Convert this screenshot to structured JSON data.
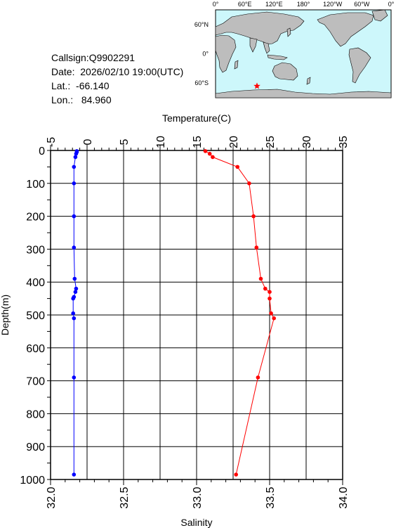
{
  "station": {
    "callsign_label": "Callsign:",
    "callsign": "Q9902291",
    "date_label": "Date:",
    "date": "2026/02/10 19:00(UTC)",
    "lat_label": "Lat.:",
    "lat": "-66.140",
    "lon_label": "Lon.:",
    "lon": "84.960"
  },
  "map": {
    "top_labels": [
      "0°",
      "60°E",
      "120°E",
      "180°",
      "120°W",
      "60°W",
      "0°"
    ],
    "lat_labels": [
      "60°N",
      "0°",
      "60°S"
    ],
    "colors": {
      "ocean": "#cdf7fb",
      "land": "#bdbdbd",
      "marker": "#ff0000"
    },
    "marker_icon": "star-icon"
  },
  "chart_data": {
    "type": "line",
    "top_axis": {
      "label": "Temperature(C)",
      "range": [
        -5,
        35
      ],
      "ticks": [
        -5,
        0,
        5,
        10,
        15,
        20,
        25,
        30,
        35
      ]
    },
    "bottom_axis": {
      "label": "Salinity",
      "range": [
        32.0,
        34.0
      ],
      "ticks": [
        "32.0",
        "32.5",
        "33.0",
        "33.5",
        "34.0"
      ]
    },
    "left_axis": {
      "label": "Depth(m)",
      "range": [
        0,
        1000
      ],
      "reversed": true,
      "ticks": [
        0,
        100,
        200,
        300,
        400,
        500,
        600,
        700,
        800,
        900,
        1000
      ]
    },
    "grid": true,
    "series": [
      {
        "quantity": "temperature",
        "axis": "top",
        "color": "#0000ff",
        "points": [
          {
            "depth": 2,
            "value": -1.4
          },
          {
            "depth": 5,
            "value": -1.4
          },
          {
            "depth": 10,
            "value": -1.5
          },
          {
            "depth": 20,
            "value": -1.6
          },
          {
            "depth": 50,
            "value": -1.8
          },
          {
            "depth": 100,
            "value": -1.8
          },
          {
            "depth": 200,
            "value": -1.8
          },
          {
            "depth": 295,
            "value": -1.8
          },
          {
            "depth": 390,
            "value": -1.7
          },
          {
            "depth": 420,
            "value": -1.5
          },
          {
            "depth": 430,
            "value": -1.6
          },
          {
            "depth": 445,
            "value": -1.8
          },
          {
            "depth": 450,
            "value": -1.9
          },
          {
            "depth": 495,
            "value": -1.9
          },
          {
            "depth": 510,
            "value": -1.8
          },
          {
            "depth": 690,
            "value": -1.8
          },
          {
            "depth": 985,
            "value": -1.8
          }
        ]
      },
      {
        "quantity": "salinity",
        "axis": "bottom",
        "color": "#ff0000",
        "points": [
          {
            "depth": 2,
            "value": 33.06
          },
          {
            "depth": 10,
            "value": 33.09
          },
          {
            "depth": 20,
            "value": 33.11
          },
          {
            "depth": 50,
            "value": 33.28
          },
          {
            "depth": 100,
            "value": 33.36
          },
          {
            "depth": 200,
            "value": 33.39
          },
          {
            "depth": 295,
            "value": 33.41
          },
          {
            "depth": 390,
            "value": 33.44
          },
          {
            "depth": 420,
            "value": 33.47
          },
          {
            "depth": 430,
            "value": 33.5
          },
          {
            "depth": 450,
            "value": 33.5
          },
          {
            "depth": 495,
            "value": 33.51
          },
          {
            "depth": 510,
            "value": 33.53
          },
          {
            "depth": 690,
            "value": 33.42
          },
          {
            "depth": 985,
            "value": 33.27
          }
        ]
      }
    ]
  }
}
